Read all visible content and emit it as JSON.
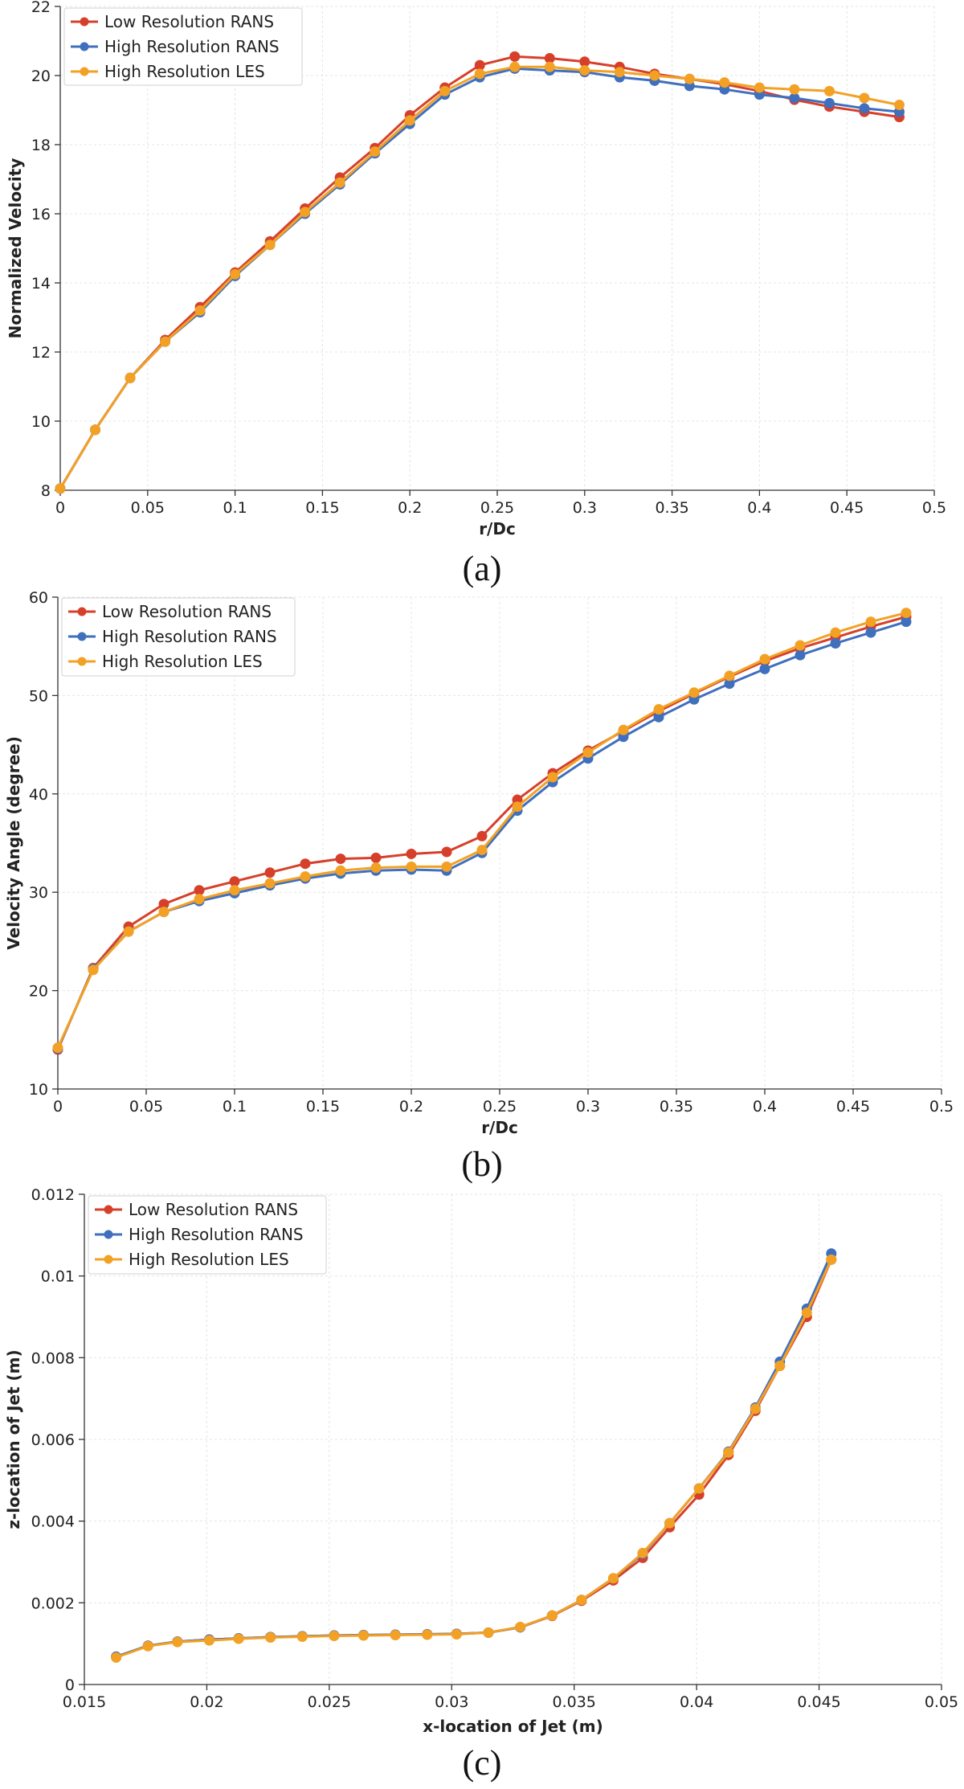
{
  "chart_data": [
    {
      "type": "line",
      "panel_label": "(a)",
      "title": "",
      "xlabel": "r/Dc",
      "ylabel": "Normalized Velocity",
      "xlim": [
        0,
        0.5
      ],
      "ylim": [
        8,
        22
      ],
      "xticks": [
        0,
        0.05,
        0.1,
        0.15,
        0.2,
        0.25,
        0.3,
        0.35,
        0.4,
        0.45,
        0.5
      ],
      "xtick_labels": [
        "0",
        "0.05",
        "0.1",
        "0.15",
        "0.2",
        "0.25",
        "0.3",
        "0.35",
        "0.4",
        "0.45",
        "0.5"
      ],
      "yticks": [
        8,
        10,
        12,
        14,
        16,
        18,
        20,
        22
      ],
      "ytick_labels": [
        "8",
        "10",
        "12",
        "14",
        "16",
        "18",
        "20",
        "22"
      ],
      "grid": true,
      "legend_position": "top-left",
      "series": [
        {
          "name": "Low Resolution RANS",
          "color": "#d6402b",
          "x": [
            0,
            0.02,
            0.04,
            0.06,
            0.08,
            0.1,
            0.12,
            0.14,
            0.16,
            0.18,
            0.2,
            0.22,
            0.24,
            0.26,
            0.28,
            0.3,
            0.32,
            0.34,
            0.36,
            0.38,
            0.4,
            0.42,
            0.44,
            0.46,
            0.48
          ],
          "y": [
            8.05,
            9.75,
            11.25,
            12.35,
            13.3,
            14.3,
            15.2,
            16.15,
            17.05,
            17.9,
            18.85,
            19.65,
            20.3,
            20.55,
            20.5,
            20.4,
            20.25,
            20.05,
            19.9,
            19.75,
            19.55,
            19.3,
            19.1,
            18.95,
            18.8
          ]
        },
        {
          "name": "High Resolution RANS",
          "color": "#3f6fbd",
          "x": [
            0,
            0.02,
            0.04,
            0.06,
            0.08,
            0.1,
            0.12,
            0.14,
            0.16,
            0.18,
            0.2,
            0.22,
            0.24,
            0.26,
            0.28,
            0.3,
            0.32,
            0.34,
            0.36,
            0.38,
            0.4,
            0.42,
            0.44,
            0.46,
            0.48
          ],
          "y": [
            8.05,
            9.75,
            11.25,
            12.3,
            13.15,
            14.2,
            15.1,
            16.0,
            16.85,
            17.75,
            18.6,
            19.45,
            19.95,
            20.2,
            20.15,
            20.1,
            19.95,
            19.85,
            19.7,
            19.6,
            19.45,
            19.35,
            19.2,
            19.05,
            18.95
          ]
        },
        {
          "name": "High Resolution LES",
          "color": "#f2a125",
          "x": [
            0,
            0.02,
            0.04,
            0.06,
            0.08,
            0.1,
            0.12,
            0.14,
            0.16,
            0.18,
            0.2,
            0.22,
            0.24,
            0.26,
            0.28,
            0.3,
            0.32,
            0.34,
            0.36,
            0.38,
            0.4,
            0.42,
            0.44,
            0.46,
            0.48
          ],
          "y": [
            8.05,
            9.75,
            11.25,
            12.3,
            13.2,
            14.25,
            15.1,
            16.05,
            16.9,
            17.8,
            18.7,
            19.55,
            20.05,
            20.25,
            20.25,
            20.15,
            20.1,
            20.0,
            19.9,
            19.8,
            19.65,
            19.6,
            19.55,
            19.35,
            19.15
          ]
        }
      ]
    },
    {
      "type": "line",
      "panel_label": "(b)",
      "title": "",
      "xlabel": "r/Dc",
      "ylabel": "Velocity Angle (degree)",
      "xlim": [
        0,
        0.5
      ],
      "ylim": [
        10,
        60
      ],
      "xticks": [
        0,
        0.05,
        0.1,
        0.15,
        0.2,
        0.25,
        0.3,
        0.35,
        0.4,
        0.45,
        0.5
      ],
      "xtick_labels": [
        "0",
        "0.05",
        "0.1",
        "0.15",
        "0.2",
        "0.25",
        "0.3",
        "0.35",
        "0.4",
        "0.45",
        "0.5"
      ],
      "yticks": [
        10,
        20,
        30,
        40,
        50,
        60
      ],
      "ytick_labels": [
        "10",
        "20",
        "30",
        "40",
        "50",
        "60"
      ],
      "grid": true,
      "legend_position": "top-left",
      "series": [
        {
          "name": "Low Resolution RANS",
          "color": "#d6402b",
          "x": [
            0,
            0.02,
            0.04,
            0.06,
            0.08,
            0.1,
            0.12,
            0.14,
            0.16,
            0.18,
            0.2,
            0.22,
            0.24,
            0.26,
            0.28,
            0.3,
            0.32,
            0.34,
            0.36,
            0.38,
            0.4,
            0.42,
            0.44,
            0.46,
            0.48
          ],
          "y": [
            14.0,
            22.3,
            26.5,
            28.8,
            30.2,
            31.1,
            32.0,
            32.9,
            33.4,
            33.5,
            33.9,
            34.1,
            35.7,
            39.4,
            42.1,
            44.4,
            46.4,
            48.4,
            50.2,
            51.9,
            53.5,
            54.8,
            55.9,
            57.0,
            58.0
          ]
        },
        {
          "name": "High Resolution RANS",
          "color": "#3f6fbd",
          "x": [
            0,
            0.02,
            0.04,
            0.06,
            0.08,
            0.1,
            0.12,
            0.14,
            0.16,
            0.18,
            0.2,
            0.22,
            0.24,
            0.26,
            0.28,
            0.3,
            0.32,
            0.34,
            0.36,
            0.38,
            0.4,
            0.42,
            0.44,
            0.46,
            0.48
          ],
          "y": [
            14.1,
            22.2,
            26.0,
            28.0,
            29.1,
            29.9,
            30.7,
            31.4,
            31.9,
            32.2,
            32.3,
            32.2,
            34.0,
            38.3,
            41.2,
            43.6,
            45.8,
            47.8,
            49.6,
            51.2,
            52.7,
            54.1,
            55.3,
            56.4,
            57.5
          ]
        },
        {
          "name": "High Resolution LES",
          "color": "#f2a125",
          "x": [
            0,
            0.02,
            0.04,
            0.06,
            0.08,
            0.1,
            0.12,
            0.14,
            0.16,
            0.18,
            0.2,
            0.22,
            0.24,
            0.26,
            0.28,
            0.3,
            0.32,
            0.34,
            0.36,
            0.38,
            0.4,
            0.42,
            0.44,
            0.46,
            0.48
          ],
          "y": [
            14.2,
            22.1,
            26.0,
            28.0,
            29.3,
            30.2,
            30.9,
            31.6,
            32.2,
            32.5,
            32.6,
            32.6,
            34.3,
            38.7,
            41.7,
            44.2,
            46.5,
            48.6,
            50.3,
            52.0,
            53.7,
            55.1,
            56.4,
            57.5,
            58.4
          ]
        }
      ]
    },
    {
      "type": "line",
      "panel_label": "(c)",
      "title": "",
      "xlabel": "x-location of Jet (m)",
      "ylabel": "z-location of Jet (m)",
      "xlim": [
        0.015,
        0.05
      ],
      "ylim": [
        0,
        0.012
      ],
      "xticks": [
        0.015,
        0.02,
        0.025,
        0.03,
        0.035,
        0.04,
        0.045,
        0.05
      ],
      "xtick_labels": [
        "0.015",
        "0.02",
        "0.025",
        "0.03",
        "0.035",
        "0.04",
        "0.045",
        "0.05"
      ],
      "yticks": [
        0,
        0.002,
        0.004,
        0.006,
        0.008,
        0.01,
        0.012
      ],
      "ytick_labels": [
        "0",
        "0.002",
        "0.004",
        "0.006",
        "0.008",
        "0.01",
        "0.012"
      ],
      "grid": true,
      "legend_position": "top-left",
      "series": [
        {
          "name": "Low Resolution RANS",
          "color": "#d6402b",
          "x": [
            0.0163,
            0.0176,
            0.0188,
            0.0201,
            0.0213,
            0.0226,
            0.0239,
            0.0252,
            0.0264,
            0.0277,
            0.029,
            0.0302,
            0.0315,
            0.0328,
            0.0341,
            0.0353,
            0.0366,
            0.0378,
            0.0389,
            0.0401,
            0.0413,
            0.0424,
            0.0434,
            0.0445,
            0.0455
          ],
          "y": [
            0.00068,
            0.00095,
            0.00105,
            0.0011,
            0.00113,
            0.00116,
            0.00118,
            0.0012,
            0.00121,
            0.00122,
            0.00123,
            0.00124,
            0.00127,
            0.0014,
            0.00168,
            0.00205,
            0.00255,
            0.0031,
            0.00385,
            0.00465,
            0.00562,
            0.0067,
            0.0078,
            0.009,
            0.0104
          ]
        },
        {
          "name": "High Resolution RANS",
          "color": "#3f6fbd",
          "x": [
            0.0163,
            0.0176,
            0.0188,
            0.0201,
            0.0213,
            0.0226,
            0.0239,
            0.0252,
            0.0264,
            0.0277,
            0.029,
            0.0302,
            0.0315,
            0.0328,
            0.0341,
            0.0353,
            0.0366,
            0.0378,
            0.0389,
            0.0401,
            0.0413,
            0.0424,
            0.0434,
            0.0445,
            0.0455
          ],
          "y": [
            0.00068,
            0.00095,
            0.00105,
            0.0011,
            0.00113,
            0.00116,
            0.00118,
            0.0012,
            0.00121,
            0.00122,
            0.00123,
            0.00124,
            0.00127,
            0.0014,
            0.00169,
            0.00207,
            0.0026,
            0.0032,
            0.00395,
            0.0048,
            0.0057,
            0.00678,
            0.0079,
            0.0092,
            0.01055
          ]
        },
        {
          "name": "High Resolution LES",
          "color": "#f2a125",
          "x": [
            0.0163,
            0.0176,
            0.0188,
            0.0201,
            0.0213,
            0.0226,
            0.0239,
            0.0252,
            0.0264,
            0.0277,
            0.029,
            0.0302,
            0.0315,
            0.0328,
            0.0341,
            0.0353,
            0.0366,
            0.0378,
            0.0389,
            0.0401,
            0.0413,
            0.0424,
            0.0434,
            0.0445,
            0.0455
          ],
          "y": [
            0.00066,
            0.00094,
            0.00104,
            0.00108,
            0.00112,
            0.00115,
            0.00117,
            0.00119,
            0.0012,
            0.00121,
            0.00122,
            0.00123,
            0.00127,
            0.00141,
            0.00169,
            0.00207,
            0.0026,
            0.00322,
            0.00395,
            0.0048,
            0.00568,
            0.00675,
            0.0078,
            0.0091,
            0.0104
          ]
        }
      ]
    }
  ]
}
